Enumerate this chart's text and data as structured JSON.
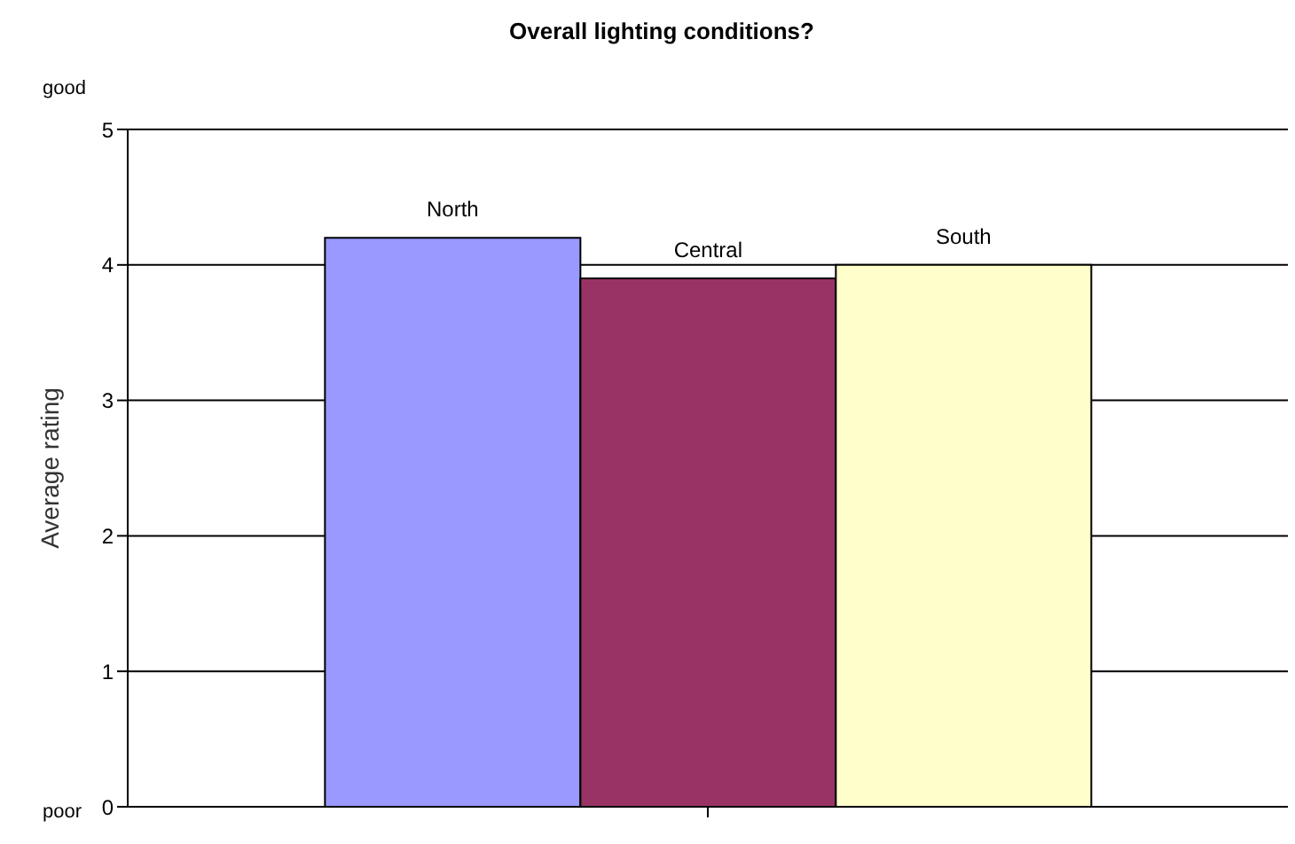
{
  "chart_data": {
    "type": "bar",
    "title": "Overall lighting conditions?",
    "ylabel": "Average rating",
    "categories": [
      null
    ],
    "series": [
      {
        "name": "North",
        "color": "#9999ff",
        "values": [
          4.2
        ]
      },
      {
        "name": "Central",
        "color": "#993366",
        "values": [
          3.9
        ]
      },
      {
        "name": "South",
        "color": "#ffffcc",
        "values": [
          4.0
        ]
      }
    ],
    "ylim": [
      0,
      5
    ],
    "yticks": [
      0,
      1,
      2,
      3,
      4,
      5
    ],
    "grid": "y",
    "legend": false,
    "annotations": [
      "good",
      "poor"
    ]
  }
}
